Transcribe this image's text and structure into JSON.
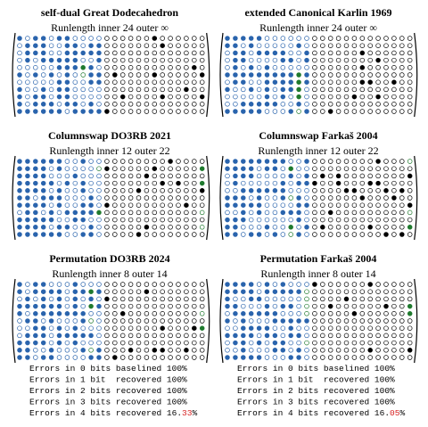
{
  "panels": [
    {
      "title": "self-dual Great Dodecahedron",
      "subtitle": "Runlength inner 24 outer ∞"
    },
    {
      "title": "extended Canonical Karlin 1969",
      "subtitle": "Runlength inner 24 outer ∞"
    },
    {
      "title": "Columnswap DO3RB 2021",
      "subtitle": "Runlength inner 12 outer 22"
    },
    {
      "title": "Columnswap Farkaš 2004",
      "subtitle": "Runlength inner 12 outer 22"
    },
    {
      "title": "Permutation DO3RB 2024",
      "subtitle": "Runlength inner 8 outer 14"
    },
    {
      "title": "Permutation Farkaš 2004",
      "subtitle": "Runlength inner 8 outer 14"
    }
  ],
  "errors": [
    {
      "lines": [
        "Errors in 0 bits baselined 100%",
        "Errors in 1 bit  recovered 100%",
        "Errors in 2 bits recovered 100%",
        "Errors in 3 bits recovered 100%"
      ],
      "last": {
        "text": "Errors in 4 bits recovered 16.",
        "highlight": "33",
        "suffix": "%"
      }
    },
    {
      "lines": [
        "Errors in 0 bits baselined 100%",
        "Errors in 1 bit  recovered 100%",
        "Errors in 2 bits recovered 100%",
        "Errors in 3 bits recovered 100%"
      ],
      "last": {
        "text": "Errors in 4 bits recovered 16.",
        "highlight": "05",
        "suffix": "%"
      }
    }
  ]
}
